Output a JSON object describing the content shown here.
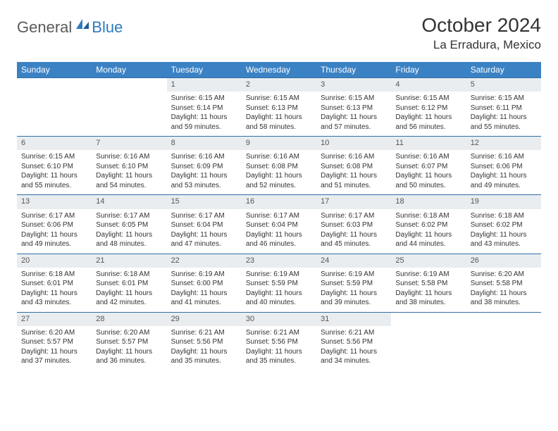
{
  "logo": {
    "general": "General",
    "blue": "Blue"
  },
  "title": "October 2024",
  "location": "La Erradura, Mexico",
  "colors": {
    "header_bg": "#3b82c4",
    "header_text": "#ffffff",
    "daynum_bg": "#e9edf0",
    "border": "#2f6fa8",
    "text": "#333333",
    "logo_gray": "#5a5a5a",
    "logo_blue": "#2f7bbf"
  },
  "dayHeaders": [
    "Sunday",
    "Monday",
    "Tuesday",
    "Wednesday",
    "Thursday",
    "Friday",
    "Saturday"
  ],
  "weeks": [
    [
      null,
      null,
      {
        "n": "1",
        "sr": "Sunrise: 6:15 AM",
        "ss": "Sunset: 6:14 PM",
        "dl": "Daylight: 11 hours and 59 minutes."
      },
      {
        "n": "2",
        "sr": "Sunrise: 6:15 AM",
        "ss": "Sunset: 6:13 PM",
        "dl": "Daylight: 11 hours and 58 minutes."
      },
      {
        "n": "3",
        "sr": "Sunrise: 6:15 AM",
        "ss": "Sunset: 6:13 PM",
        "dl": "Daylight: 11 hours and 57 minutes."
      },
      {
        "n": "4",
        "sr": "Sunrise: 6:15 AM",
        "ss": "Sunset: 6:12 PM",
        "dl": "Daylight: 11 hours and 56 minutes."
      },
      {
        "n": "5",
        "sr": "Sunrise: 6:15 AM",
        "ss": "Sunset: 6:11 PM",
        "dl": "Daylight: 11 hours and 55 minutes."
      }
    ],
    [
      {
        "n": "6",
        "sr": "Sunrise: 6:15 AM",
        "ss": "Sunset: 6:10 PM",
        "dl": "Daylight: 11 hours and 55 minutes."
      },
      {
        "n": "7",
        "sr": "Sunrise: 6:16 AM",
        "ss": "Sunset: 6:10 PM",
        "dl": "Daylight: 11 hours and 54 minutes."
      },
      {
        "n": "8",
        "sr": "Sunrise: 6:16 AM",
        "ss": "Sunset: 6:09 PM",
        "dl": "Daylight: 11 hours and 53 minutes."
      },
      {
        "n": "9",
        "sr": "Sunrise: 6:16 AM",
        "ss": "Sunset: 6:08 PM",
        "dl": "Daylight: 11 hours and 52 minutes."
      },
      {
        "n": "10",
        "sr": "Sunrise: 6:16 AM",
        "ss": "Sunset: 6:08 PM",
        "dl": "Daylight: 11 hours and 51 minutes."
      },
      {
        "n": "11",
        "sr": "Sunrise: 6:16 AM",
        "ss": "Sunset: 6:07 PM",
        "dl": "Daylight: 11 hours and 50 minutes."
      },
      {
        "n": "12",
        "sr": "Sunrise: 6:16 AM",
        "ss": "Sunset: 6:06 PM",
        "dl": "Daylight: 11 hours and 49 minutes."
      }
    ],
    [
      {
        "n": "13",
        "sr": "Sunrise: 6:17 AM",
        "ss": "Sunset: 6:06 PM",
        "dl": "Daylight: 11 hours and 49 minutes."
      },
      {
        "n": "14",
        "sr": "Sunrise: 6:17 AM",
        "ss": "Sunset: 6:05 PM",
        "dl": "Daylight: 11 hours and 48 minutes."
      },
      {
        "n": "15",
        "sr": "Sunrise: 6:17 AM",
        "ss": "Sunset: 6:04 PM",
        "dl": "Daylight: 11 hours and 47 minutes."
      },
      {
        "n": "16",
        "sr": "Sunrise: 6:17 AM",
        "ss": "Sunset: 6:04 PM",
        "dl": "Daylight: 11 hours and 46 minutes."
      },
      {
        "n": "17",
        "sr": "Sunrise: 6:17 AM",
        "ss": "Sunset: 6:03 PM",
        "dl": "Daylight: 11 hours and 45 minutes."
      },
      {
        "n": "18",
        "sr": "Sunrise: 6:18 AM",
        "ss": "Sunset: 6:02 PM",
        "dl": "Daylight: 11 hours and 44 minutes."
      },
      {
        "n": "19",
        "sr": "Sunrise: 6:18 AM",
        "ss": "Sunset: 6:02 PM",
        "dl": "Daylight: 11 hours and 43 minutes."
      }
    ],
    [
      {
        "n": "20",
        "sr": "Sunrise: 6:18 AM",
        "ss": "Sunset: 6:01 PM",
        "dl": "Daylight: 11 hours and 43 minutes."
      },
      {
        "n": "21",
        "sr": "Sunrise: 6:18 AM",
        "ss": "Sunset: 6:01 PM",
        "dl": "Daylight: 11 hours and 42 minutes."
      },
      {
        "n": "22",
        "sr": "Sunrise: 6:19 AM",
        "ss": "Sunset: 6:00 PM",
        "dl": "Daylight: 11 hours and 41 minutes."
      },
      {
        "n": "23",
        "sr": "Sunrise: 6:19 AM",
        "ss": "Sunset: 5:59 PM",
        "dl": "Daylight: 11 hours and 40 minutes."
      },
      {
        "n": "24",
        "sr": "Sunrise: 6:19 AM",
        "ss": "Sunset: 5:59 PM",
        "dl": "Daylight: 11 hours and 39 minutes."
      },
      {
        "n": "25",
        "sr": "Sunrise: 6:19 AM",
        "ss": "Sunset: 5:58 PM",
        "dl": "Daylight: 11 hours and 38 minutes."
      },
      {
        "n": "26",
        "sr": "Sunrise: 6:20 AM",
        "ss": "Sunset: 5:58 PM",
        "dl": "Daylight: 11 hours and 38 minutes."
      }
    ],
    [
      {
        "n": "27",
        "sr": "Sunrise: 6:20 AM",
        "ss": "Sunset: 5:57 PM",
        "dl": "Daylight: 11 hours and 37 minutes."
      },
      {
        "n": "28",
        "sr": "Sunrise: 6:20 AM",
        "ss": "Sunset: 5:57 PM",
        "dl": "Daylight: 11 hours and 36 minutes."
      },
      {
        "n": "29",
        "sr": "Sunrise: 6:21 AM",
        "ss": "Sunset: 5:56 PM",
        "dl": "Daylight: 11 hours and 35 minutes."
      },
      {
        "n": "30",
        "sr": "Sunrise: 6:21 AM",
        "ss": "Sunset: 5:56 PM",
        "dl": "Daylight: 11 hours and 35 minutes."
      },
      {
        "n": "31",
        "sr": "Sunrise: 6:21 AM",
        "ss": "Sunset: 5:56 PM",
        "dl": "Daylight: 11 hours and 34 minutes."
      },
      null,
      null
    ]
  ]
}
